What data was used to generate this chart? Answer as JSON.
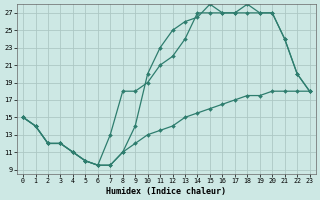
{
  "xlabel": "Humidex (Indice chaleur)",
  "bg_color": "#cde8e4",
  "grid_color": "#adc8c4",
  "line_color": "#2e7d6e",
  "xlim": [
    -0.5,
    23.5
  ],
  "ylim": [
    8.5,
    28
  ],
  "xticks": [
    0,
    1,
    2,
    3,
    4,
    5,
    6,
    7,
    8,
    9,
    10,
    11,
    12,
    13,
    14,
    15,
    16,
    17,
    18,
    19,
    20,
    21,
    22,
    23
  ],
  "yticks": [
    9,
    11,
    13,
    15,
    17,
    19,
    21,
    23,
    25,
    27
  ],
  "line1_x": [
    0,
    1,
    2,
    3,
    4,
    5,
    6,
    7,
    8,
    9,
    10,
    11,
    12,
    13,
    14,
    15,
    16,
    17,
    18,
    19,
    20,
    21,
    22,
    23
  ],
  "line1_y": [
    15,
    14,
    12,
    12,
    11,
    10,
    9.5,
    9.5,
    11,
    14,
    20,
    23,
    25,
    26,
    26.5,
    28,
    27,
    27,
    28,
    27,
    27,
    24,
    20,
    18
  ],
  "line2_x": [
    0,
    1,
    2,
    3,
    4,
    5,
    6,
    7,
    8,
    9,
    10,
    11,
    12,
    13,
    14,
    15,
    16,
    17,
    18,
    19,
    20,
    21,
    22,
    23
  ],
  "line2_y": [
    15,
    14,
    12,
    12,
    11,
    10,
    9.5,
    13,
    18,
    18,
    19,
    21,
    22,
    24,
    27,
    27,
    27,
    27,
    27,
    27,
    27,
    24,
    20,
    18
  ],
  "line3_x": [
    0,
    1,
    2,
    3,
    4,
    5,
    6,
    7,
    8,
    9,
    10,
    11,
    12,
    13,
    14,
    15,
    16,
    17,
    18,
    19,
    20,
    21,
    22,
    23
  ],
  "line3_y": [
    15,
    14,
    12,
    12,
    11,
    10,
    9.5,
    9.5,
    11,
    12,
    13,
    13.5,
    14,
    15,
    15.5,
    16,
    16.5,
    17,
    17.5,
    17.5,
    18,
    18,
    18,
    18
  ]
}
